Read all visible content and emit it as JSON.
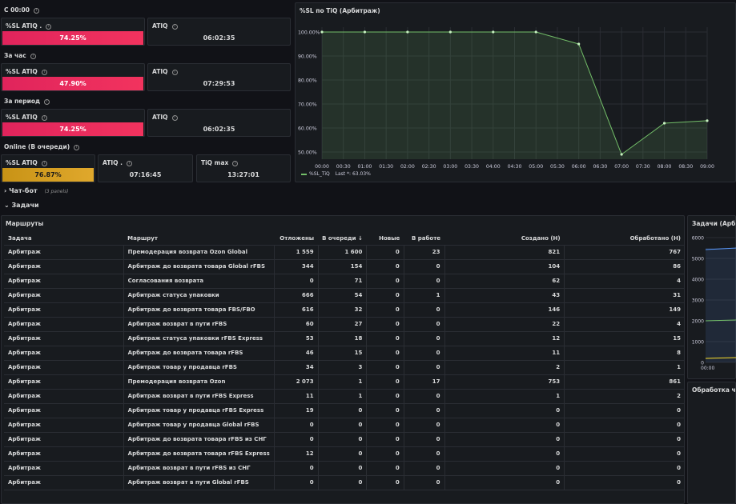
{
  "stats": {
    "since_midnight": {
      "label": "С 00:00",
      "sl_title": "%SL ATIQ .",
      "sl_value": "74.25%",
      "atiq_title": "ATIQ",
      "atiq_value": "06:02:35"
    },
    "last_hour": {
      "label": "За час",
      "sl_title": "%SL ATIQ",
      "sl_value": "47.90%",
      "atiq_title": "ATIQ",
      "atiq_value": "07:29:53"
    },
    "period": {
      "label": "За период",
      "sl_title": "%SL ATIQ",
      "sl_value": "74.25%",
      "atiq_title": "ATIQ",
      "atiq_value": "06:02:35"
    },
    "online": {
      "label": "Online (В очереди)",
      "sl_title": "%SL ATIQ",
      "sl_value": "76.87%",
      "atiq_title": "ATIQ .",
      "atiq_value": "07:16:45",
      "tiq_title": "TiQ max",
      "tiq_value": "13:27:01"
    },
    "colors": {
      "red": "#f2335e",
      "yellow": "#e0a82c"
    }
  },
  "sl_chart": {
    "title": "%SL по TiQ (Арбитраж)",
    "legend_series": "%SL_TiQ",
    "legend_last": "Last *: 63.03%",
    "line_color": "#73bf69"
  },
  "chart_data": {
    "type": "line",
    "title": "%SL по TiQ (Арбитраж)",
    "categories": [
      "00:00",
      "00:30",
      "01:00",
      "01:30",
      "02:00",
      "02:30",
      "03:00",
      "03:30",
      "04:00",
      "04:30",
      "05:00",
      "05:30",
      "06:00",
      "06:30",
      "07:00",
      "07:30",
      "08:00",
      "08:30",
      "09:00"
    ],
    "yticks": [
      "50.00%",
      "60.00%",
      "70.00%",
      "80.00%",
      "90.00%",
      "100.00%"
    ],
    "ylim": [
      47,
      102
    ],
    "series": [
      {
        "name": "%SL_TiQ",
        "points": [
          {
            "x": "00:00",
            "y": 100
          },
          {
            "x": "01:00",
            "y": 100
          },
          {
            "x": "02:00",
            "y": 100
          },
          {
            "x": "03:00",
            "y": 100
          },
          {
            "x": "04:00",
            "y": 100
          },
          {
            "x": "05:00",
            "y": 100
          },
          {
            "x": "06:00",
            "y": 95
          },
          {
            "x": "07:00",
            "y": 49
          },
          {
            "x": "08:00",
            "y": 62
          },
          {
            "x": "09:00",
            "y": 63.03
          }
        ]
      }
    ]
  },
  "sections": {
    "chatbot": "Чат-бот",
    "chatbot_note": "(3 panels)",
    "tasks": "Задачи"
  },
  "routes": {
    "title": "Маршруты",
    "columns": [
      "Задача",
      "Маршрут",
      "Отложены",
      "В очереди ↓",
      "Новые",
      "В работе",
      "Создано (Н)",
      "Обработано (Н)"
    ],
    "rows": [
      [
        "Арбитраж",
        "Премодерация возврата Ozon Global",
        "1 559",
        "1 600",
        "0",
        "23",
        "821",
        "767"
      ],
      [
        "Арбитраж",
        "Арбитраж до возврата товара Global rFBS",
        "344",
        "154",
        "0",
        "0",
        "104",
        "86"
      ],
      [
        "Арбитраж",
        "Согласования возврата",
        "0",
        "71",
        "0",
        "0",
        "62",
        "4"
      ],
      [
        "Арбитраж",
        "Арбитраж статуса упаковки",
        "666",
        "54",
        "0",
        "1",
        "43",
        "31"
      ],
      [
        "Арбитраж",
        "Арбитраж до возврата товара FBS/FBO",
        "616",
        "32",
        "0",
        "0",
        "146",
        "149"
      ],
      [
        "Арбитраж",
        "Арбитраж возврат в пути rFBS",
        "60",
        "27",
        "0",
        "0",
        "22",
        "4"
      ],
      [
        "Арбитраж",
        "Арбитраж статуса упаковки rFBS Express",
        "53",
        "18",
        "0",
        "0",
        "12",
        "15"
      ],
      [
        "Арбитраж",
        "Арбитраж до возврата товара rFBS",
        "46",
        "15",
        "0",
        "0",
        "11",
        "8"
      ],
      [
        "Арбитраж",
        "Арбитраж товар у продавца rFBS",
        "34",
        "3",
        "0",
        "0",
        "2",
        "1"
      ],
      [
        "Арбитраж",
        "Премодерация возврата Ozon",
        "2 073",
        "1",
        "0",
        "17",
        "753",
        "861"
      ],
      [
        "Арбитраж",
        "Арбитраж возврат в пути rFBS Express",
        "11",
        "1",
        "0",
        "0",
        "1",
        "2"
      ],
      [
        "Арбитраж",
        "Арбитраж товар у продавца rFBS Express",
        "19",
        "0",
        "0",
        "0",
        "0",
        "0"
      ],
      [
        "Арбитраж",
        "Арбитраж товар у продавца Global rFBS",
        "0",
        "0",
        "0",
        "0",
        "0",
        "0"
      ],
      [
        "Арбитраж",
        "Арбитраж до возврата товара rFBS из СНГ",
        "0",
        "0",
        "0",
        "0",
        "0",
        "0"
      ],
      [
        "Арбитраж",
        "Арбитраж до возврата товара rFBS Express",
        "12",
        "0",
        "0",
        "0",
        "0",
        "0"
      ],
      [
        "Арбитраж",
        "Арбитраж возврат в пути rFBS из СНГ",
        "0",
        "0",
        "0",
        "0",
        "0",
        "0"
      ],
      [
        "Арбитраж",
        "Арбитраж возврат в пути Global rFBS",
        "0",
        "0",
        "0",
        "0",
        "0",
        "0"
      ]
    ]
  },
  "side_panel": {
    "title": "Задачи (Арбитр",
    "yticks": [
      "0",
      "1000",
      "2000",
      "3000",
      "4000",
      "5000",
      "6000"
    ],
    "xtick": "00:00",
    "bottom_title": "Обработка чато"
  }
}
